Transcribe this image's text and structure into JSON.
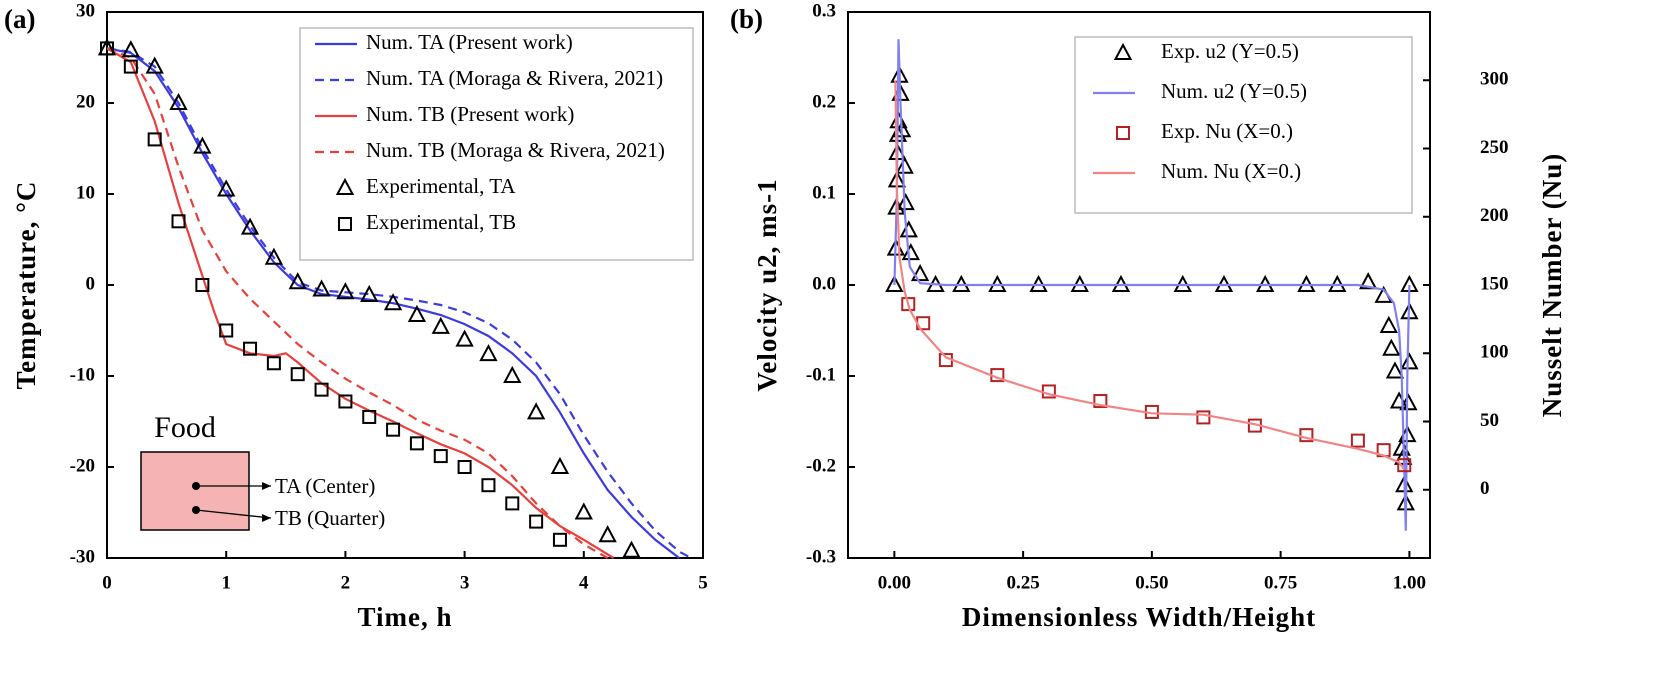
{
  "chart_data": [
    {
      "type": "line",
      "panel_label": "(a)",
      "x_label": "Time, h",
      "y_label": "Temperature, °C",
      "xlim": [
        0,
        5
      ],
      "ylim": [
        -30,
        30
      ],
      "xticks": [
        0,
        1,
        2,
        3,
        4,
        5
      ],
      "yticks": [
        -30,
        -20,
        -10,
        0,
        10,
        20,
        30
      ],
      "legend": "upper right",
      "inset": {
        "title": "Food",
        "labels": [
          "TA (Center)",
          "TB (Quarter)"
        ]
      },
      "series": [
        {
          "name": "Num. TA (Present work)",
          "kind": "line",
          "style": "solid",
          "color": "#3b3bdf",
          "x": [
            0,
            0.2,
            0.4,
            0.6,
            0.8,
            1.0,
            1.2,
            1.4,
            1.6,
            1.8,
            2.0,
            2.2,
            2.4,
            2.6,
            2.8,
            3.0,
            3.2,
            3.4,
            3.6,
            3.8,
            4.0,
            4.2,
            4.4,
            4.6,
            4.8
          ],
          "values": [
            26,
            25.5,
            23.5,
            19.5,
            14.5,
            10,
            6,
            2.5,
            0,
            -1,
            -1.3,
            -1.6,
            -2,
            -2.6,
            -3.3,
            -4.3,
            -5.6,
            -7.5,
            -10,
            -14,
            -18.5,
            -22.5,
            -25.5,
            -28,
            -30
          ]
        },
        {
          "name": "Num. TA (Moraga & Rivera, 2021)",
          "kind": "line",
          "style": "dashed",
          "color": "#3b3bdf",
          "x": [
            0,
            0.2,
            0.4,
            0.6,
            0.8,
            1.0,
            1.2,
            1.4,
            1.6,
            1.8,
            2.0,
            2.2,
            2.4,
            2.6,
            2.8,
            3.0,
            3.2,
            3.4,
            3.6,
            3.8,
            4.0,
            4.2,
            4.4,
            4.6,
            4.8,
            4.9
          ],
          "values": [
            26,
            25.6,
            24,
            20,
            15,
            10.5,
            6.5,
            3,
            0.3,
            -0.6,
            -0.8,
            -1,
            -1.3,
            -1.7,
            -2.2,
            -3,
            -4.2,
            -6,
            -8.5,
            -12,
            -16.5,
            -20.5,
            -24,
            -27,
            -29.3,
            -30
          ]
        },
        {
          "name": "Num. TB (Present work)",
          "kind": "line",
          "style": "solid",
          "color": "#e8403c",
          "x": [
            0,
            0.2,
            0.4,
            0.6,
            0.8,
            0.9,
            1.0,
            1.2,
            1.4,
            1.5,
            1.6,
            1.8,
            2.0,
            2.2,
            2.4,
            2.6,
            2.8,
            3.0,
            3.2,
            3.4,
            3.6,
            3.8,
            4.0,
            4.25
          ],
          "values": [
            26,
            24.5,
            18,
            9,
            1,
            -3,
            -6.5,
            -7.5,
            -7.8,
            -7.5,
            -8.5,
            -10.8,
            -12.5,
            -13.8,
            -15,
            -16.3,
            -17.5,
            -18.5,
            -20,
            -22,
            -24.5,
            -26.5,
            -28,
            -30
          ]
        },
        {
          "name": "Num. TB (Moraga & Rivera, 2021)",
          "kind": "line",
          "style": "dashed",
          "color": "#e8403c",
          "x": [
            0,
            0.2,
            0.4,
            0.6,
            0.8,
            1.0,
            1.2,
            1.4,
            1.6,
            1.8,
            2.0,
            2.2,
            2.4,
            2.6,
            2.8,
            3.0,
            3.2,
            3.4,
            3.6,
            3.8,
            4.0,
            4.2
          ],
          "values": [
            26,
            25,
            21,
            13,
            6,
            1.5,
            -1.5,
            -4,
            -6.5,
            -8.5,
            -10.3,
            -11.8,
            -13.2,
            -14.8,
            -16,
            -17,
            -18.5,
            -21,
            -24,
            -26.5,
            -28.5,
            -30
          ]
        },
        {
          "name": "Experimental, TA",
          "kind": "scatter",
          "marker": "triangle",
          "color": "#000000",
          "x": [
            0,
            0.2,
            0.4,
            0.6,
            0.8,
            1.0,
            1.2,
            1.4,
            1.6,
            1.8,
            2.0,
            2.2,
            2.4,
            2.6,
            2.8,
            3.0,
            3.2,
            3.4,
            3.6,
            3.8,
            4.0,
            4.2,
            4.4
          ],
          "values": [
            26,
            25.8,
            24,
            20,
            15.2,
            10.5,
            6.3,
            3,
            0.3,
            -0.5,
            -0.8,
            -1.1,
            -2,
            -3.3,
            -4.6,
            -6,
            -7.6,
            -10,
            -14,
            -20,
            -25,
            -27.5,
            -29.2
          ]
        },
        {
          "name": "Experimental, TB",
          "kind": "scatter",
          "marker": "square",
          "color": "#000000",
          "x": [
            0,
            0.2,
            0.4,
            0.6,
            0.8,
            1.0,
            1.2,
            1.4,
            1.6,
            1.8,
            2.0,
            2.2,
            2.4,
            2.6,
            2.8,
            3.0,
            3.2,
            3.4,
            3.6,
            3.8
          ],
          "values": [
            26,
            24,
            16,
            7,
            0,
            -5,
            -7,
            -8.6,
            -9.8,
            -11.5,
            -12.8,
            -14.5,
            -15.9,
            -17.4,
            -18.8,
            -20,
            -22,
            -24,
            -26,
            -28
          ]
        }
      ]
    },
    {
      "type": "line",
      "panel_label": "(b)",
      "x_label": "Dimensionless Width/Height",
      "y_label": "Velocity u2, ms-1",
      "y2_label": "Nusselt Number (Nu)",
      "xlim": [
        -0.09,
        1.04
      ],
      "ylim": [
        -0.3,
        0.3
      ],
      "y2lim": [
        -50,
        350
      ],
      "xticks": [
        {
          "value": 0,
          "label": "0.00"
        },
        0.25,
        {
          "value": 0.5,
          "label": "0.50"
        },
        0.75,
        {
          "value": 1,
          "label": "1.00"
        }
      ],
      "yticks": [
        -0.3,
        -0.2,
        -0.1,
        {
          "value": 0,
          "label": "0.0"
        },
        0.1,
        0.2,
        0.3
      ],
      "y2ticks": [
        0,
        50,
        100,
        150,
        200,
        250,
        300
      ],
      "legend": "upper right",
      "series": [
        {
          "name": "Exp. u2 (Y=0.5)",
          "kind": "scatter",
          "marker": "triangle",
          "color": "#000000",
          "x": [
            0,
            0.003,
            0.004,
            0.005,
            0.006,
            0.007,
            0.008,
            0.01,
            0.012,
            0.015,
            0.02,
            0.022,
            0.028,
            0.032,
            0.05,
            0.08,
            0.13,
            0.2,
            0.28,
            0.36,
            0.44,
            0.56,
            0.64,
            0.72,
            0.8,
            0.86,
            0.92,
            0.95,
            0.96,
            0.965,
            0.972,
            0.98,
            0.985,
            0.988,
            0.99,
            0.993,
            0.996,
            0.998,
            1.0,
            1.0,
            1.0
          ],
          "values": [
            0,
            0.04,
            0.085,
            0.115,
            0.145,
            0.165,
            0.18,
            0.23,
            0.21,
            0.17,
            0.13,
            0.09,
            0.06,
            0.035,
            0.012,
            0,
            0,
            0,
            0,
            0,
            0,
            0,
            0,
            0,
            0,
            0,
            0.003,
            -0.012,
            -0.045,
            -0.07,
            -0.095,
            -0.128,
            -0.18,
            -0.19,
            -0.22,
            -0.24,
            -0.165,
            -0.13,
            -0.085,
            -0.03,
            0
          ]
        },
        {
          "name": "Num. u2 (Y=0.5)",
          "kind": "line",
          "style": "solid",
          "color": "#8080ef",
          "x": [
            0,
            0.005,
            0.008,
            0.012,
            0.02,
            0.03,
            0.05,
            0.1,
            0.5,
            0.9,
            0.95,
            0.97,
            0.98,
            0.985,
            0.99,
            0.993,
            0.996,
            1.0
          ],
          "values": [
            0,
            0.1,
            0.27,
            0.2,
            0.08,
            0.02,
            0.002,
            0,
            0,
            0,
            -0.005,
            -0.02,
            -0.05,
            -0.1,
            -0.2,
            -0.27,
            -0.1,
            0
          ]
        },
        {
          "name": "Exp. Nu (X=0.)",
          "kind": "scatter",
          "marker": "square",
          "color": "#b22222",
          "axis": "y2",
          "x": [
            0.027,
            0.056,
            0.1,
            0.2,
            0.3,
            0.4,
            0.5,
            0.6,
            0.7,
            0.8,
            0.9,
            0.95,
            0.99
          ],
          "values": [
            136,
            122,
            95,
            84,
            72,
            65,
            57,
            53,
            47,
            40,
            36,
            29,
            18
          ]
        },
        {
          "name": "Num. Nu (X=0.)",
          "kind": "line",
          "style": "solid",
          "color": "#f28484",
          "axis": "y2",
          "x": [
            0.002,
            0.005,
            0.01,
            0.02,
            0.03,
            0.05,
            0.1,
            0.2,
            0.3,
            0.4,
            0.5,
            0.6,
            0.7,
            0.8,
            0.9,
            0.95,
            0.98,
            0.99
          ],
          "values": [
            300,
            220,
            170,
            145,
            132,
            118,
            97,
            82,
            70,
            62,
            56,
            55,
            48,
            38,
            30,
            25,
            20,
            15
          ]
        }
      ]
    }
  ]
}
